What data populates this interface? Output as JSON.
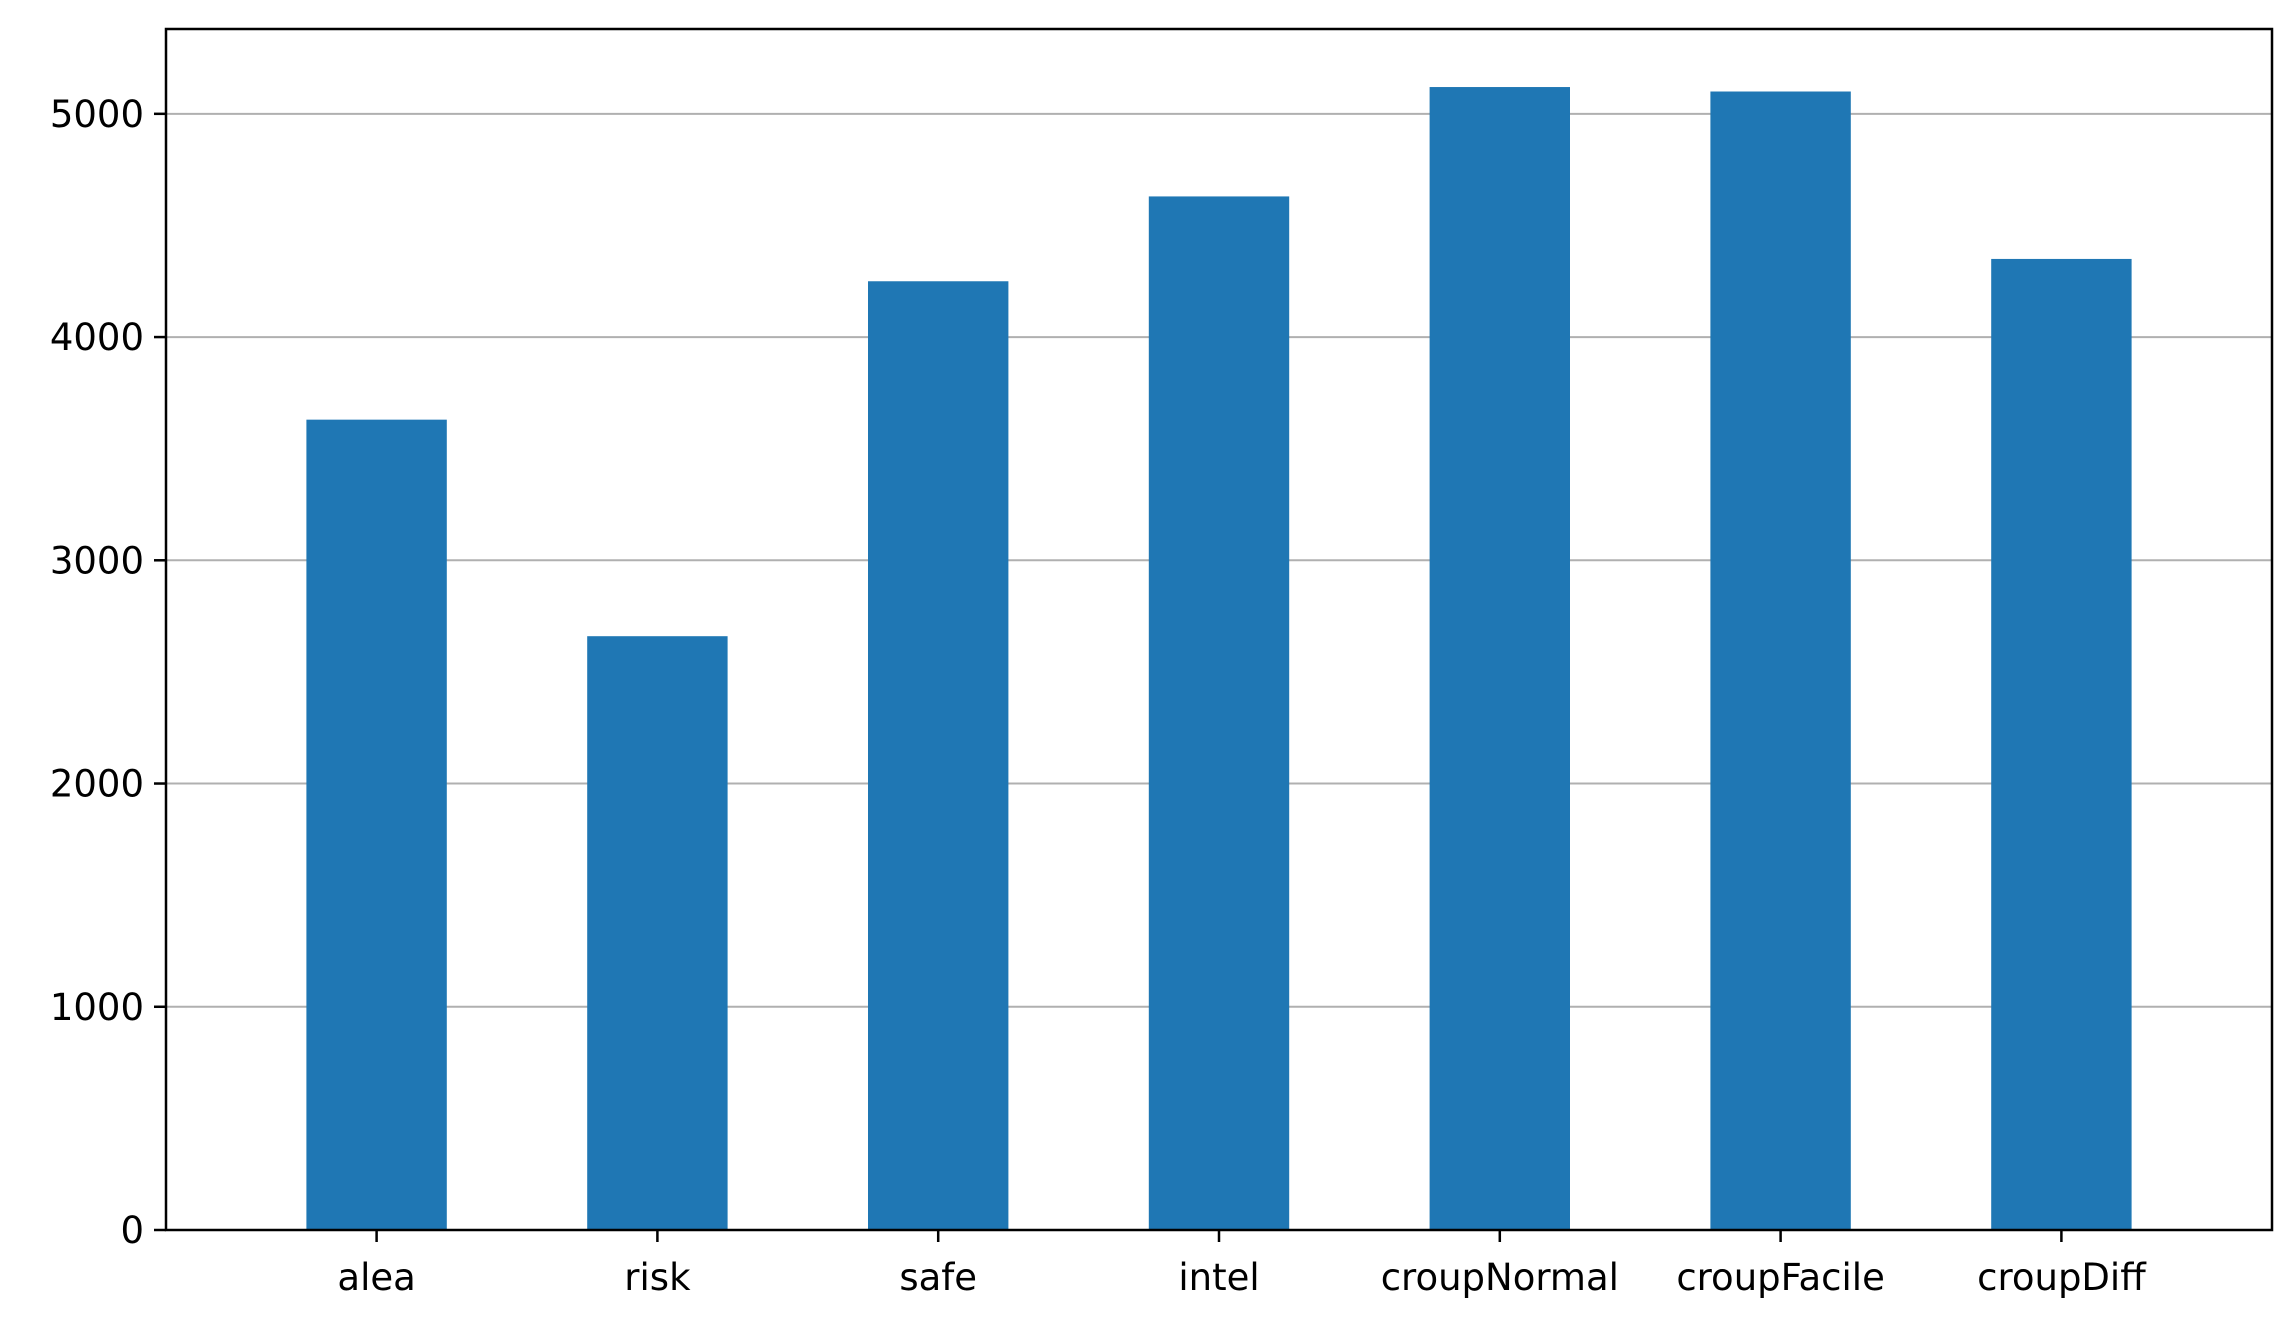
{
  "chart_data": {
    "type": "bar",
    "title": "",
    "xlabel": "",
    "ylabel": "",
    "categories": [
      "alea",
      "risk",
      "safe",
      "intel",
      "croupNormal",
      "croupFacile",
      "croupDiff"
    ],
    "values": [
      3630,
      2660,
      4250,
      4630,
      5120,
      5100,
      4350
    ],
    "ylim": [
      0,
      5380
    ],
    "yticks": [
      0,
      1000,
      2000,
      3000,
      4000,
      5000
    ],
    "grid": "horizontal",
    "legend": "none",
    "bar_color": "#1f77b4"
  }
}
